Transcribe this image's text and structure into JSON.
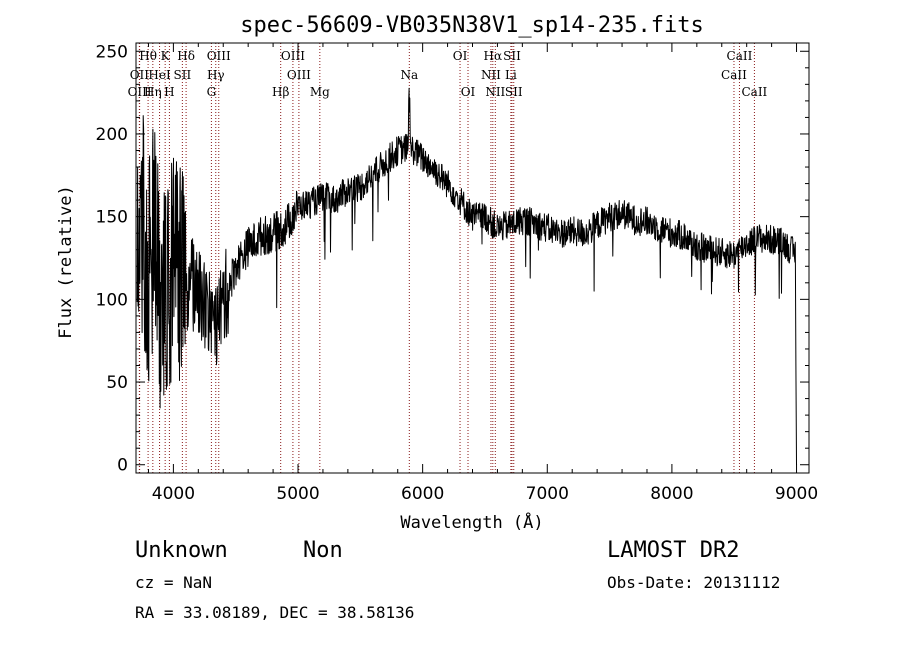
{
  "chart_data": {
    "type": "line",
    "title": "spec-56609-VB035N38V1_sp14-235.fits",
    "xlabel": "Wavelength (Å)",
    "ylabel": "Flux (relative)",
    "xlim": [
      3700,
      9100
    ],
    "ylim": [
      -5,
      255
    ],
    "xticks": [
      4000,
      5000,
      6000,
      7000,
      8000,
      9000
    ],
    "yticks": [
      0,
      50,
      100,
      150,
      200,
      250
    ],
    "grid": false,
    "line_color": "#000000",
    "marker_color": "#8b1a1a",
    "spectrum_anchors": [
      [
        3720,
        120
      ],
      [
        3750,
        150
      ],
      [
        3800,
        110
      ],
      [
        3850,
        150
      ],
      [
        3900,
        80
      ],
      [
        3950,
        110
      ],
      [
        4000,
        118
      ],
      [
        4050,
        112
      ],
      [
        4100,
        108
      ],
      [
        4150,
        110
      ],
      [
        4200,
        102
      ],
      [
        4250,
        98
      ],
      [
        4300,
        90
      ],
      [
        4350,
        88
      ],
      [
        4400,
        98
      ],
      [
        4500,
        120
      ],
      [
        4600,
        132
      ],
      [
        4700,
        138
      ],
      [
        4800,
        140
      ],
      [
        4900,
        144
      ],
      [
        5000,
        156
      ],
      [
        5100,
        158
      ],
      [
        5200,
        162
      ],
      [
        5300,
        160
      ],
      [
        5400,
        166
      ],
      [
        5500,
        168
      ],
      [
        5600,
        175
      ],
      [
        5700,
        183
      ],
      [
        5800,
        190
      ],
      [
        5900,
        192
      ],
      [
        6000,
        185
      ],
      [
        6100,
        178
      ],
      [
        6200,
        170
      ],
      [
        6300,
        160
      ],
      [
        6400,
        150
      ],
      [
        6500,
        150
      ],
      [
        6600,
        143
      ],
      [
        6700,
        145
      ],
      [
        6800,
        148
      ],
      [
        6900,
        146
      ],
      [
        7000,
        143
      ],
      [
        7100,
        140
      ],
      [
        7200,
        141
      ],
      [
        7300,
        140
      ],
      [
        7400,
        145
      ],
      [
        7500,
        150
      ],
      [
        7600,
        152
      ],
      [
        7700,
        148
      ],
      [
        7800,
        147
      ],
      [
        7900,
        143
      ],
      [
        8000,
        140
      ],
      [
        8100,
        138
      ],
      [
        8200,
        132
      ],
      [
        8300,
        130
      ],
      [
        8400,
        128
      ],
      [
        8500,
        127
      ],
      [
        8600,
        134
      ],
      [
        8700,
        137
      ],
      [
        8800,
        136
      ],
      [
        8900,
        134
      ],
      [
        8980,
        128
      ]
    ],
    "spectral_lines": [
      {
        "label": "Hθ",
        "wavelength": 3797,
        "row": 0,
        "label_offset": 0
      },
      {
        "label": "K",
        "wavelength": 3934,
        "row": 0,
        "label_offset": 0
      },
      {
        "label": "Hδ",
        "wavelength": 4102,
        "row": 0,
        "label_offset": 0
      },
      {
        "label": "OIII",
        "wavelength": 4364,
        "row": 0,
        "label_offset": 0
      },
      {
        "label": "OIII",
        "wavelength": 4959,
        "row": 0,
        "label_offset": 0
      },
      {
        "label": "OI",
        "wavelength": 6300,
        "row": 0,
        "label_offset": 0
      },
      {
        "label": "Hα",
        "wavelength": 6563,
        "row": 0,
        "label_offset": 0
      },
      {
        "label": "SII",
        "wavelength": 6717,
        "row": 0,
        "label_offset": 0
      },
      {
        "label": "CaII",
        "wavelength": 8542,
        "row": 0,
        "label_offset": 0
      },
      {
        "label": "OII",
        "wavelength": 3727,
        "row": 1,
        "label_offset": 0
      },
      {
        "label": "HeI",
        "wavelength": 3889,
        "row": 1,
        "label_offset": 0
      },
      {
        "label": "SII",
        "wavelength": 4072,
        "row": 1,
        "label_offset": 0
      },
      {
        "label": "Hγ",
        "wavelength": 4340,
        "row": 1,
        "label_offset": 0
      },
      {
        "label": "OIII",
        "wavelength": 5007,
        "row": 1,
        "label_offset": 0
      },
      {
        "label": "Na",
        "wavelength": 5893,
        "row": 1,
        "label_offset": 0
      },
      {
        "label": "NII",
        "wavelength": 6548,
        "row": 1,
        "label_offset": 0
      },
      {
        "label": "Li",
        "wavelength": 6708,
        "row": 1,
        "label_offset": 0
      },
      {
        "label": "CaII",
        "wavelength": 8498,
        "row": 1,
        "label_offset": 0
      },
      {
        "label": "OIII",
        "wavelength": 3729,
        "row": 2,
        "label_offset": 0
      },
      {
        "label": "Hη",
        "wavelength": 3835,
        "row": 2,
        "label_offset": 0
      },
      {
        "label": "H",
        "wavelength": 3968,
        "row": 2,
        "label_offset": 0
      },
      {
        "label": "G",
        "wavelength": 4305,
        "row": 2,
        "label_offset": 0
      },
      {
        "label": "Hβ",
        "wavelength": 4861,
        "row": 2,
        "label_offset": 0
      },
      {
        "label": "Mg",
        "wavelength": 5175,
        "row": 2,
        "label_offset": 0
      },
      {
        "label": "OI",
        "wavelength": 6364,
        "row": 2,
        "label_offset": 0
      },
      {
        "label": "NII",
        "wavelength": 6583,
        "row": 2,
        "label_offset": 0
      },
      {
        "label": "SII",
        "wavelength": 6731,
        "row": 2,
        "label_offset": 0
      },
      {
        "label": "CaII",
        "wavelength": 8662,
        "row": 2,
        "label_offset": 0
      }
    ]
  },
  "info": {
    "class_label": "Unknown",
    "subclass_label": "Non",
    "cz": "cz = NaN",
    "radec": "RA =  33.08189, DEC =  38.58136",
    "survey": "LAMOST DR2",
    "obs_date": "Obs-Date: 20131112"
  }
}
